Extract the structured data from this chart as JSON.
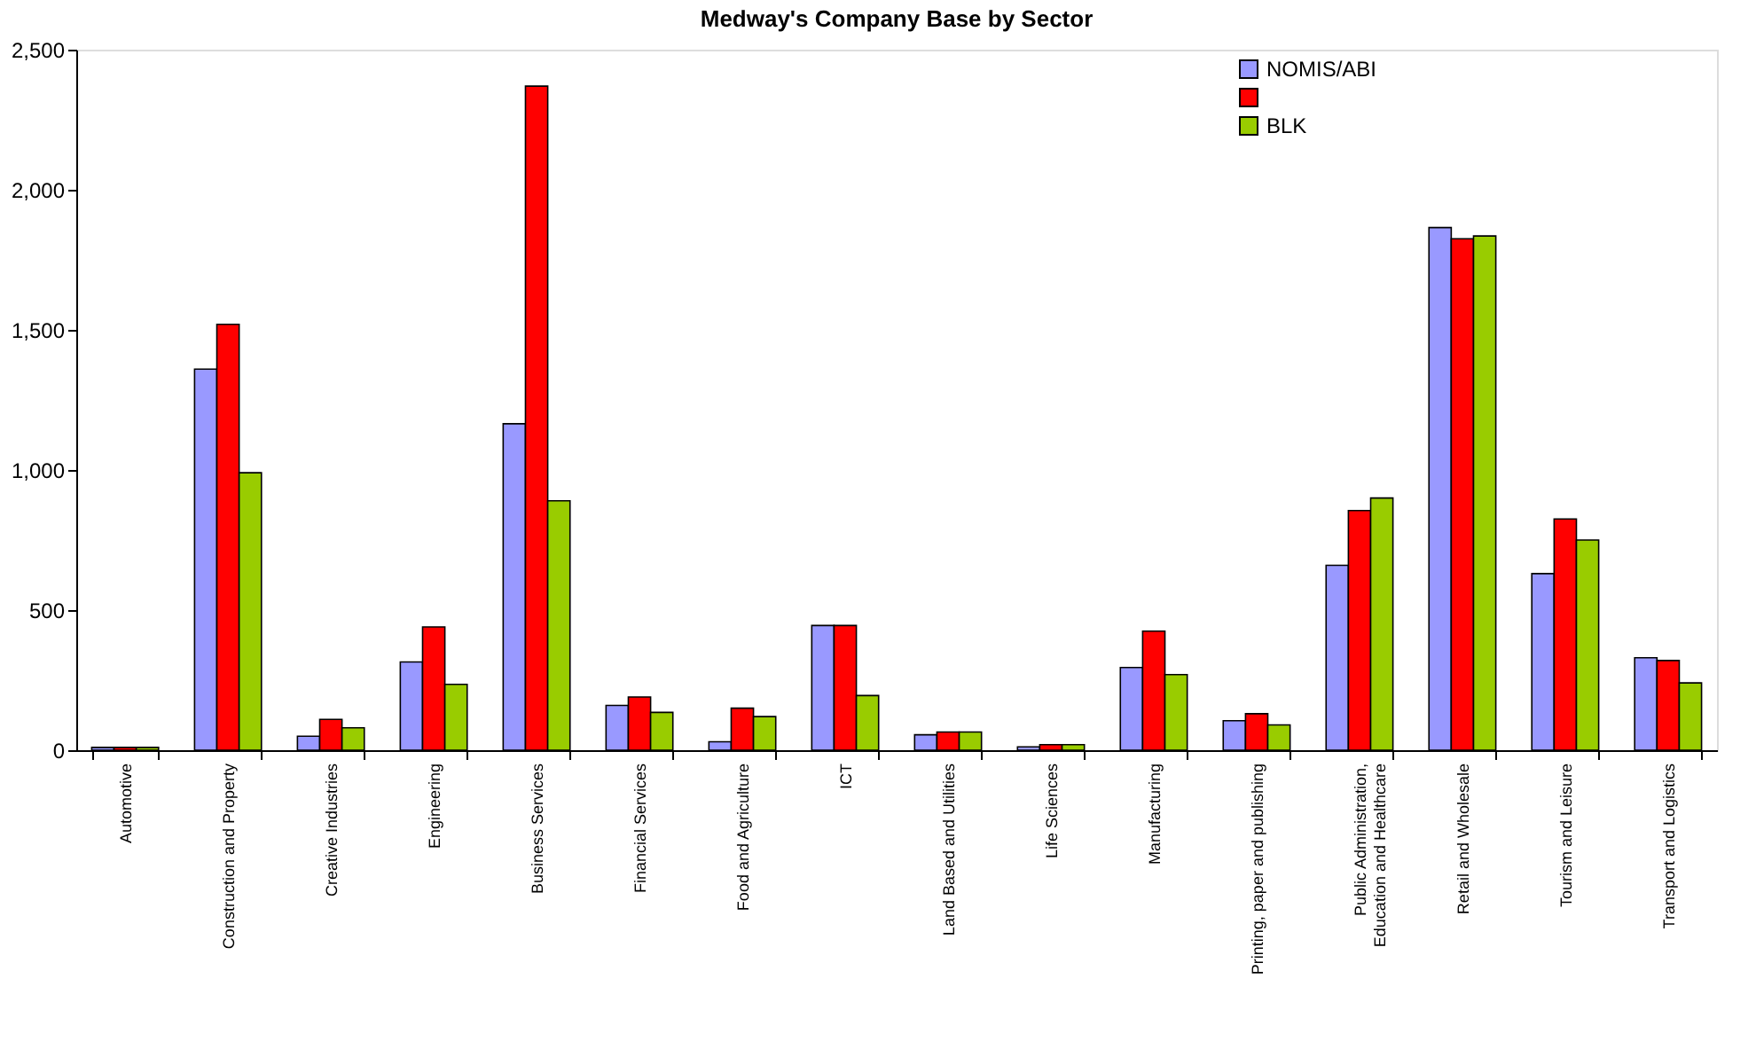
{
  "chart_data": {
    "type": "bar",
    "title": "Medway's Company Base by Sector",
    "categories": [
      "Automotive",
      "Construction and Property",
      "Creative Industries",
      "Engineering",
      "Business Services",
      "Financial Services",
      "Food and Agriculture",
      "ICT",
      "Land Based and Utilities",
      "Life Sciences",
      "Manufacturing",
      "Printing, paper and publishing",
      "Public Administration, Education and Healthcare",
      "Retail and Wholesale",
      "Tourism and Leisure",
      "Transport and Logistics"
    ],
    "series": [
      {
        "name": "NOMIS/ABI",
        "color": "#9999ff",
        "values": [
          10,
          1360,
          50,
          315,
          1165,
          160,
          30,
          445,
          55,
          12,
          295,
          105,
          660,
          1865,
          630,
          330
        ]
      },
      {
        "color": "#ff0000",
        "values": [
          10,
          1520,
          110,
          440,
          2370,
          190,
          150,
          445,
          65,
          20,
          425,
          130,
          855,
          1825,
          825,
          320
        ]
      },
      {
        "name": "BLK",
        "color": "#99cc00",
        "values": [
          10,
          990,
          80,
          235,
          890,
          135,
          120,
          195,
          65,
          20,
          270,
          90,
          900,
          1835,
          750,
          240
        ]
      }
    ],
    "ylim": [
      0,
      2500
    ],
    "yticks": [
      0,
      500,
      {
        "value": 1000,
        "label": "1,000"
      },
      {
        "value": 1500,
        "label": "1,500"
      },
      {
        "value": 2000,
        "label": "2,000"
      },
      {
        "value": 2500,
        "label": "2,500"
      }
    ],
    "grid": false,
    "legend": "top right"
  }
}
